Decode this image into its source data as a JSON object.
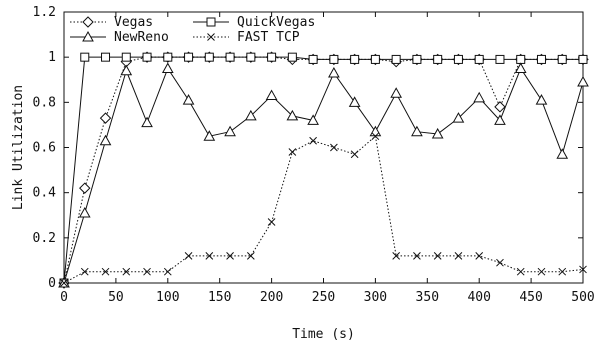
{
  "chart_data": {
    "type": "line",
    "title": "",
    "xlabel": "Time (s)",
    "ylabel": "Link Utilization",
    "xlim": [
      0,
      500
    ],
    "ylim": [
      0,
      1.2
    ],
    "xticks": [
      0,
      50,
      100,
      150,
      200,
      250,
      300,
      350,
      400,
      450,
      500
    ],
    "yticks": [
      0,
      0.2,
      0.4,
      0.6,
      0.8,
      1,
      1.2
    ],
    "xtick_labels": [
      "0",
      "50",
      "100",
      "150",
      "200",
      "250",
      "300",
      "350",
      "400",
      "450",
      "500"
    ],
    "ytick_labels": [
      "0",
      "0.2",
      "0.4",
      "0.6",
      "0.8",
      "1",
      "1.2"
    ],
    "grid": false,
    "legend_position": "top-left",
    "series": [
      {
        "name": "Vegas",
        "marker": "diamond",
        "line": "dotted",
        "x": [
          0,
          20,
          40,
          60,
          80,
          100,
          120,
          140,
          160,
          180,
          200,
          220,
          240,
          260,
          280,
          300,
          320,
          340,
          360,
          380,
          400,
          420,
          440,
          460,
          480,
          500
        ],
        "y": [
          0,
          0.42,
          0.73,
          0.98,
          1.0,
          1.0,
          1.0,
          1.0,
          1.0,
          1.0,
          1.0,
          0.99,
          0.99,
          0.99,
          0.99,
          0.99,
          0.98,
          0.99,
          0.99,
          0.99,
          0.99,
          0.78,
          0.99,
          0.99,
          0.99,
          0.99
        ]
      },
      {
        "name": "QuickVegas",
        "marker": "square",
        "line": "solid",
        "x": [
          0,
          20,
          40,
          60,
          80,
          100,
          120,
          140,
          160,
          180,
          200,
          220,
          240,
          260,
          280,
          300,
          320,
          340,
          360,
          380,
          400,
          420,
          440,
          460,
          480,
          500
        ],
        "y": [
          0,
          1.0,
          1.0,
          1.0,
          1.0,
          1.0,
          1.0,
          1.0,
          1.0,
          1.0,
          1.0,
          1.0,
          0.99,
          0.99,
          0.99,
          0.99,
          0.99,
          0.99,
          0.99,
          0.99,
          0.99,
          0.99,
          0.99,
          0.99,
          0.99,
          0.99
        ]
      },
      {
        "name": "NewReno",
        "marker": "triangle",
        "line": "solid",
        "x": [
          0,
          20,
          40,
          60,
          80,
          100,
          120,
          140,
          160,
          180,
          200,
          220,
          240,
          260,
          280,
          300,
          320,
          340,
          360,
          380,
          400,
          420,
          440,
          460,
          480,
          500
        ],
        "y": [
          0,
          0.31,
          0.63,
          0.94,
          0.71,
          0.95,
          0.81,
          0.65,
          0.67,
          0.74,
          0.83,
          0.74,
          0.72,
          0.93,
          0.8,
          0.67,
          0.84,
          0.67,
          0.66,
          0.73,
          0.82,
          0.72,
          0.95,
          0.81,
          0.57,
          0.89
        ]
      },
      {
        "name": "FAST TCP",
        "marker": "x",
        "line": "dotted",
        "x": [
          0,
          20,
          40,
          60,
          80,
          100,
          120,
          140,
          160,
          180,
          200,
          220,
          240,
          260,
          280,
          300,
          320,
          340,
          360,
          380,
          400,
          420,
          440,
          460,
          480,
          500
        ],
        "y": [
          0,
          0.05,
          0.05,
          0.05,
          0.05,
          0.05,
          0.12,
          0.12,
          0.12,
          0.12,
          0.27,
          0.58,
          0.63,
          0.6,
          0.57,
          0.65,
          0.12,
          0.12,
          0.12,
          0.12,
          0.12,
          0.09,
          0.05,
          0.05,
          0.05,
          0.06
        ]
      }
    ]
  }
}
